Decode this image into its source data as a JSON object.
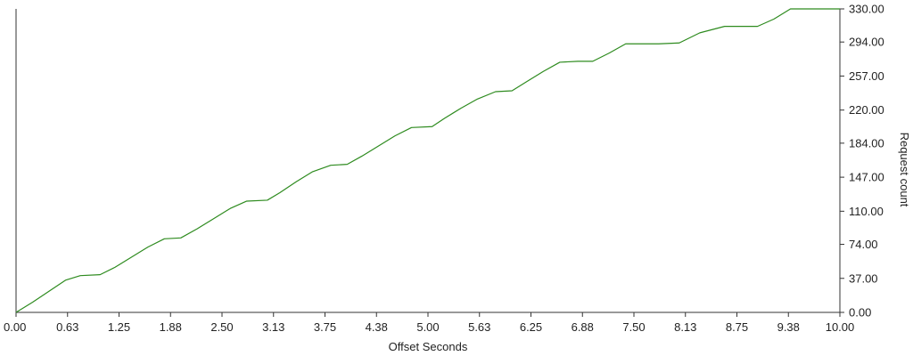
{
  "chart_data": {
    "type": "line",
    "title": "",
    "xlabel": "Offset Seconds",
    "ylabel": "Request count",
    "xlim": [
      0,
      10
    ],
    "ylim": [
      0,
      330
    ],
    "grid": false,
    "y_axis_side": "right",
    "x_ticks": [
      "0.00",
      "0.63",
      "1.25",
      "1.88",
      "2.50",
      "3.13",
      "3.75",
      "4.38",
      "5.00",
      "5.63",
      "6.25",
      "6.88",
      "7.50",
      "8.13",
      "8.75",
      "9.38",
      "10.00"
    ],
    "x_tick_values": [
      0,
      0.625,
      1.25,
      1.875,
      2.5,
      3.125,
      3.75,
      4.375,
      5,
      5.625,
      6.25,
      6.875,
      7.5,
      8.125,
      8.75,
      9.375,
      10
    ],
    "y_ticks": [
      "0.00",
      "37.00",
      "74.00",
      "110.00",
      "147.00",
      "184.00",
      "220.00",
      "257.00",
      "294.00",
      "330.00"
    ],
    "y_tick_values": [
      0,
      37,
      74,
      110,
      147,
      184,
      220,
      257,
      294,
      330
    ],
    "series": [
      {
        "color": "#2e8b1f",
        "x": [
          0,
          0.2,
          0.4,
          0.6,
          0.78,
          1.02,
          1.2,
          1.4,
          1.6,
          1.8,
          2.0,
          2.2,
          2.4,
          2.6,
          2.8,
          3.05,
          3.2,
          3.4,
          3.6,
          3.82,
          4.02,
          4.2,
          4.4,
          4.6,
          4.8,
          5.05,
          5.2,
          5.4,
          5.6,
          5.82,
          6.02,
          6.2,
          6.4,
          6.6,
          6.82,
          7.0,
          7.2,
          7.4,
          7.8,
          8.05,
          8.3,
          8.6,
          9.0,
          9.2,
          9.4,
          10.0
        ],
        "y": [
          0,
          11,
          23,
          35,
          40,
          41,
          49,
          60,
          71,
          80,
          81,
          91,
          102,
          113,
          121,
          122,
          130,
          142,
          153,
          160,
          161,
          170,
          181,
          192,
          201,
          202,
          211,
          222,
          232,
          240,
          241,
          251,
          262,
          272,
          273,
          273,
          282,
          292,
          292,
          293,
          304,
          311,
          311,
          319,
          330,
          330
        ]
      }
    ]
  }
}
